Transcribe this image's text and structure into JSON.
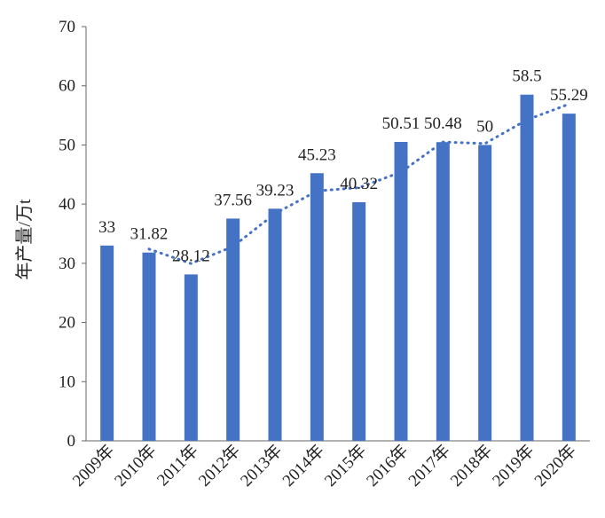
{
  "chart_data": {
    "type": "bar",
    "title": "",
    "xlabel": "",
    "ylabel": "年产量/万t",
    "categories": [
      "2009年",
      "2010年",
      "2011年",
      "2012年",
      "2013年",
      "2014年",
      "2015年",
      "2016年",
      "2017年",
      "2018年",
      "2019年",
      "2020年"
    ],
    "series": [
      {
        "values": [
          33,
          31.82,
          28.12,
          37.56,
          39.23,
          45.23,
          40.32,
          50.51,
          50.48,
          50,
          58.5,
          55.29
        ]
      }
    ],
    "data_labels": [
      "33",
      "31.82",
      "28.12",
      "37.56",
      "39.23",
      "45.23",
      "40.32",
      "50.51",
      "50.48",
      "50",
      "58.5",
      "55.29"
    ],
    "trendline": {
      "style": "dotted",
      "type": "moving-average",
      "period": 2
    },
    "ylim": [
      0,
      70
    ],
    "yticks": [
      0,
      10,
      20,
      30,
      40,
      50,
      60,
      70
    ],
    "grid": false,
    "legend": "none",
    "colors": {
      "bar": "#4472C4",
      "trend": "#4472C4",
      "axis": "#666666"
    }
  }
}
